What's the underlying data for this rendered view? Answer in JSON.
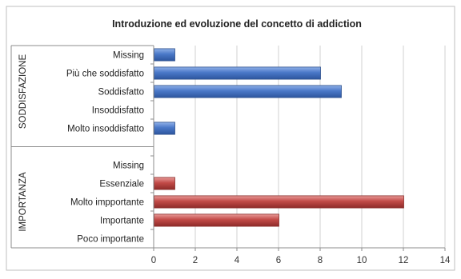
{
  "chart_data": {
    "type": "bar",
    "orientation": "horizontal",
    "title": "Introduzione ed evoluzione del concetto di addiction",
    "xlim": [
      0,
      14
    ],
    "x_ticks": [
      0,
      2,
      4,
      6,
      8,
      10,
      12,
      14
    ],
    "grid": true,
    "legend": "none",
    "groups": [
      {
        "label": "SODDISFAZIONE",
        "color": "#4472c4",
        "categories": [
          "Missing",
          "Più che soddisfatto",
          "Soddisfatto",
          "Insoddisfatto",
          "Molto insoddisfatto"
        ],
        "values": [
          1,
          8,
          9,
          0,
          1
        ]
      },
      {
        "label": "IMPORTANZA",
        "color": "#c0504d",
        "categories": [
          "Missing",
          "Essenziale",
          "Molto impportante",
          "Importante",
          "Poco importante"
        ],
        "values": [
          0,
          1,
          12,
          6,
          0
        ]
      }
    ]
  }
}
